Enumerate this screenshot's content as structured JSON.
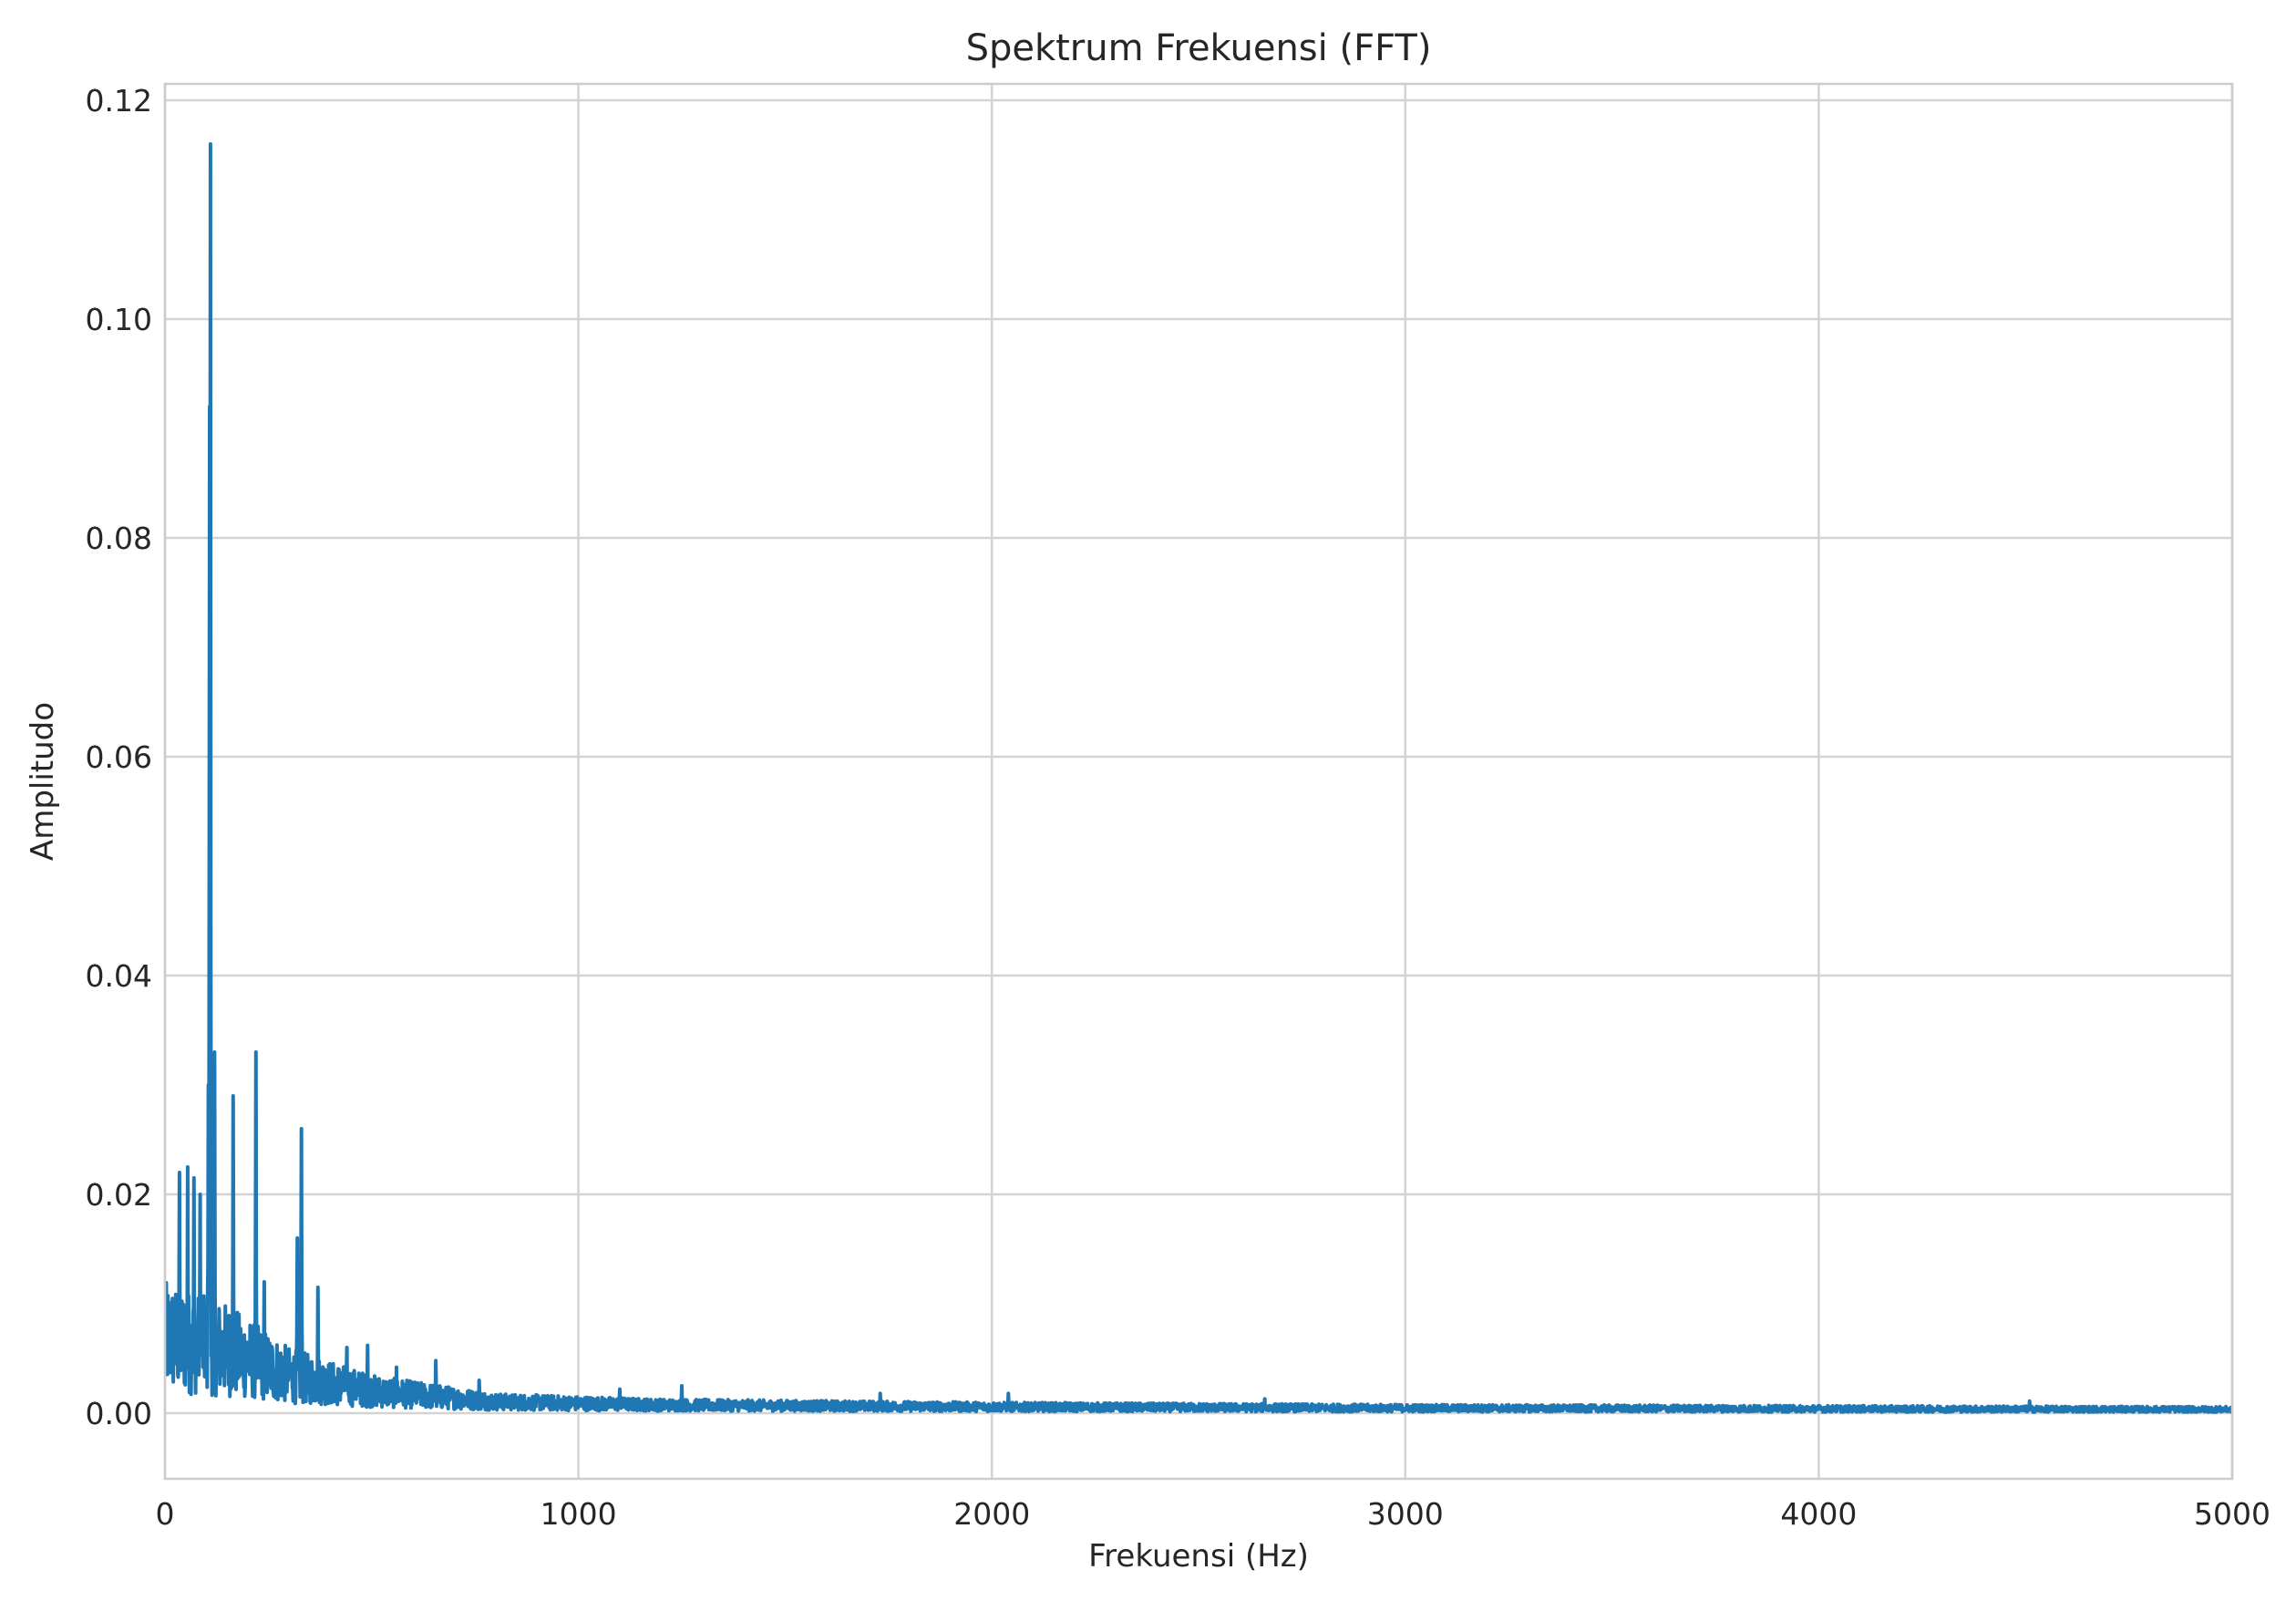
{
  "chart_data": {
    "type": "line",
    "title": "Spektrum Frekuensi (FFT)",
    "xlabel": "Frekuensi (Hz)",
    "ylabel": "Amplitudo",
    "xlim": [
      0,
      5000
    ],
    "ylim": [
      -0.006,
      0.1215
    ],
    "x_ticks": [
      0,
      1000,
      2000,
      3000,
      4000,
      5000
    ],
    "x_tick_labels": [
      "0",
      "1000",
      "2000",
      "3000",
      "4000",
      "5000"
    ],
    "y_ticks": [
      0.0,
      0.02,
      0.04,
      0.06,
      0.08,
      0.1,
      0.12
    ],
    "y_tick_labels": [
      "0.00",
      "0.02",
      "0.04",
      "0.06",
      "0.08",
      "0.10",
      "0.12"
    ],
    "grid": true,
    "series": [
      {
        "color": "#1f77b4",
        "peaks": [
          {
            "x": 110,
            "y": 0.116
          },
          {
            "x": 108,
            "y": 0.092
          },
          {
            "x": 105,
            "y": 0.03
          },
          {
            "x": 120,
            "y": 0.033
          },
          {
            "x": 165,
            "y": 0.029
          },
          {
            "x": 220,
            "y": 0.033
          },
          {
            "x": 330,
            "y": 0.026
          },
          {
            "x": 320,
            "y": 0.016
          },
          {
            "x": 55,
            "y": 0.0225
          },
          {
            "x": 35,
            "y": 0.022
          },
          {
            "x": 70,
            "y": 0.0215
          },
          {
            "x": 85,
            "y": 0.02
          },
          {
            "x": 240,
            "y": 0.012
          },
          {
            "x": 370,
            "y": 0.0115
          },
          {
            "x": 440,
            "y": 0.006
          },
          {
            "x": 490,
            "y": 0.0062
          },
          {
            "x": 560,
            "y": 0.0042
          },
          {
            "x": 655,
            "y": 0.0048
          },
          {
            "x": 760,
            "y": 0.003
          },
          {
            "x": 1100,
            "y": 0.0022
          },
          {
            "x": 1250,
            "y": 0.0025
          },
          {
            "x": 1730,
            "y": 0.0018
          },
          {
            "x": 2040,
            "y": 0.0018
          },
          {
            "x": 2660,
            "y": 0.0013
          },
          {
            "x": 4510,
            "y": 0.0011
          }
        ],
        "noise_floor_envelope": [
          {
            "x": 0,
            "y": 0.012
          },
          {
            "x": 150,
            "y": 0.01
          },
          {
            "x": 300,
            "y": 0.006
          },
          {
            "x": 500,
            "y": 0.0035
          },
          {
            "x": 800,
            "y": 0.0018
          },
          {
            "x": 1200,
            "y": 0.0013
          },
          {
            "x": 2000,
            "y": 0.001
          },
          {
            "x": 3000,
            "y": 0.0008
          },
          {
            "x": 4000,
            "y": 0.0007
          },
          {
            "x": 5000,
            "y": 0.0006
          }
        ]
      }
    ]
  }
}
